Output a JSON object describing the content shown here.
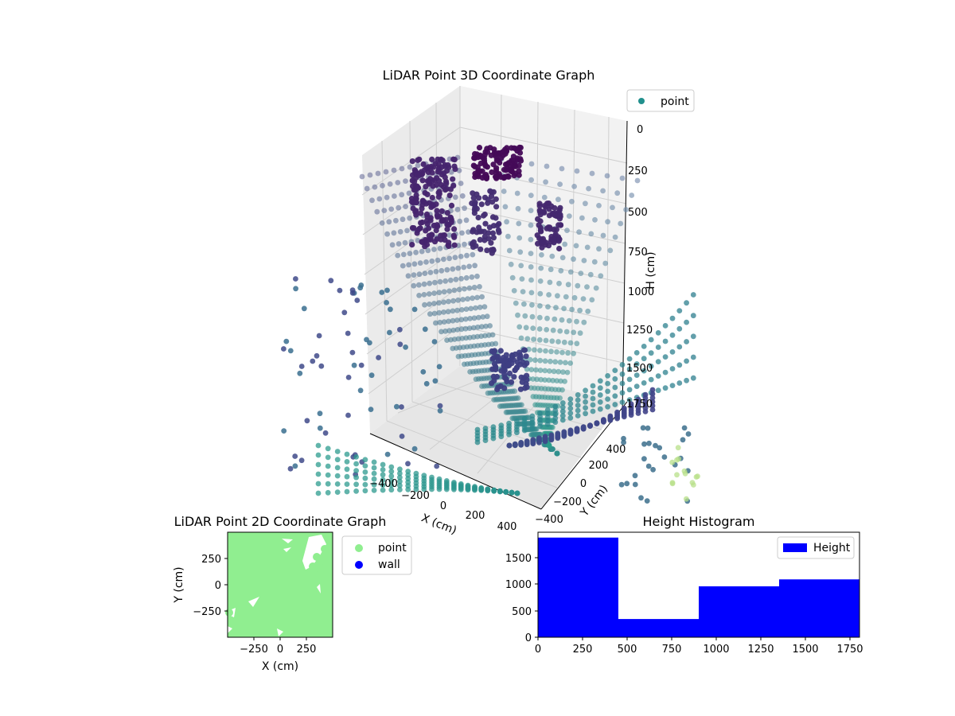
{
  "chart_data": [
    {
      "type": "scatter3d",
      "title": "LiDAR Point 3D Coordinate Graph",
      "xlabel": "X (cm)",
      "ylabel": "Y (cm)",
      "zlabel": "H (cm)",
      "x_ticks": [
        "−400",
        "−200",
        "0",
        "200",
        "400"
      ],
      "y_ticks": [
        "−400",
        "−200",
        "0",
        "200",
        "400"
      ],
      "z_ticks": [
        "0",
        "250",
        "500",
        "750",
        "1000",
        "1250",
        "1500",
        "1750"
      ],
      "xlim": [
        -500,
        500
      ],
      "ylim": [
        -500,
        500
      ],
      "zlim": [
        1800,
        0
      ],
      "colormap": "viridis",
      "legend": [
        "point"
      ],
      "legend_color": "#21908d",
      "legend_position": "top-right"
    },
    {
      "type": "scatter",
      "title": "LiDAR Point 2D Coordinate Graph",
      "xlabel": "X (cm)",
      "ylabel": "Y (cm)",
      "x_ticks": [
        "−250",
        "0",
        "250"
      ],
      "y_ticks": [
        "250",
        "0",
        "−250"
      ],
      "xlim": [
        -500,
        500
      ],
      "ylim": [
        -500,
        500
      ],
      "series": [
        {
          "name": "point",
          "color": "#90ee90"
        },
        {
          "name": "wall",
          "color": "#0000ff"
        }
      ],
      "legend_position": "outside-right"
    },
    {
      "type": "bar",
      "title": "Height Histogram",
      "xlabel": "",
      "ylabel": "",
      "series_name": "Height",
      "color": "#0000ff",
      "bin_edges": [
        0,
        450,
        900,
        1350,
        1800
      ],
      "values": [
        1860,
        340,
        950,
        1080
      ],
      "x_ticks": [
        "0",
        "250",
        "500",
        "750",
        "1000",
        "1250",
        "1500",
        "1750"
      ],
      "y_ticks": [
        "0",
        "500",
        "1000",
        "1500"
      ],
      "xlim": [
        0,
        1800
      ],
      "ylim": [
        0,
        1960
      ],
      "legend_position": "top-right"
    }
  ]
}
